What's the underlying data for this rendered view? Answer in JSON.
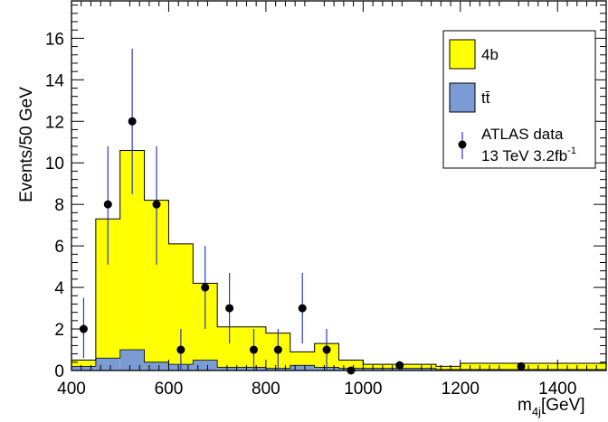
{
  "chart_data": {
    "type": "histogram",
    "xlabel": "m",
    "xlabel_sub": "4j",
    "xlabel_unit": "[GeV]",
    "ylabel": "Events/50 GeV",
    "xlim": [
      400,
      1500
    ],
    "ylim": [
      0,
      17.8
    ],
    "x_ticks": [
      400,
      600,
      800,
      1000,
      1200,
      1400
    ],
    "y_ticks": [
      0,
      2,
      4,
      6,
      8,
      10,
      12,
      14,
      16
    ],
    "grid": false,
    "legend_position": "top-right",
    "legend": {
      "series_4b": "4b",
      "series_ttbar": "tt̄",
      "data_line1": "ATLAS data",
      "data_line2": "13 TeV 3.2fb",
      "data_line2_sup": "-1"
    },
    "stack_colors": {
      "series_4b": "#ffff00",
      "series_ttbar": "#7b9bd5"
    },
    "bins": [
      {
        "x0": 400,
        "x1": 450,
        "ttbar": 0.2,
        "total": 0.5
      },
      {
        "x0": 450,
        "x1": 500,
        "ttbar": 0.6,
        "total": 7.3
      },
      {
        "x0": 500,
        "x1": 550,
        "ttbar": 1.0,
        "total": 10.6
      },
      {
        "x0": 550,
        "x1": 600,
        "ttbar": 0.4,
        "total": 8.2
      },
      {
        "x0": 600,
        "x1": 650,
        "ttbar": 0.3,
        "total": 6.1
      },
      {
        "x0": 650,
        "x1": 700,
        "ttbar": 0.5,
        "total": 4.2
      },
      {
        "x0": 700,
        "x1": 750,
        "ttbar": 0.15,
        "total": 2.1
      },
      {
        "x0": 750,
        "x1": 800,
        "ttbar": 0.15,
        "total": 2.1
      },
      {
        "x0": 800,
        "x1": 850,
        "ttbar": 0.1,
        "total": 1.8
      },
      {
        "x0": 850,
        "x1": 900,
        "ttbar": 0.25,
        "total": 0.9
      },
      {
        "x0": 900,
        "x1": 950,
        "ttbar": 0.15,
        "total": 1.3
      },
      {
        "x0": 950,
        "x1": 1000,
        "ttbar": 0.1,
        "total": 0.5
      },
      {
        "x0": 1000,
        "x1": 1050,
        "ttbar": 0.1,
        "total": 0.3
      },
      {
        "x0": 1050,
        "x1": 1100,
        "ttbar": 0.1,
        "total": 0.3
      },
      {
        "x0": 1100,
        "x1": 1150,
        "ttbar": 0.1,
        "total": 0.3
      },
      {
        "x0": 1150,
        "x1": 1200,
        "ttbar": 0.05,
        "total": 0.2
      },
      {
        "x0": 1200,
        "x1": 1500,
        "ttbar": 0.05,
        "total": 0.35
      }
    ],
    "data_points": [
      {
        "x": 425,
        "y": 2,
        "err_low": 1.4,
        "err_high": 1.5
      },
      {
        "x": 475,
        "y": 8,
        "err_low": 2.9,
        "err_high": 2.8
      },
      {
        "x": 525,
        "y": 12,
        "err_low": 3.5,
        "err_high": 3.5
      },
      {
        "x": 575,
        "y": 8,
        "err_low": 2.9,
        "err_high": 2.8
      },
      {
        "x": 625,
        "y": 1,
        "err_low": 1.0,
        "err_high": 1.0
      },
      {
        "x": 675,
        "y": 4,
        "err_low": 2.0,
        "err_high": 2.0
      },
      {
        "x": 725,
        "y": 3,
        "err_low": 1.7,
        "err_high": 1.7
      },
      {
        "x": 775,
        "y": 1,
        "err_low": 1.0,
        "err_high": 1.0
      },
      {
        "x": 825,
        "y": 1,
        "err_low": 1.0,
        "err_high": 1.0
      },
      {
        "x": 875,
        "y": 3,
        "err_low": 1.7,
        "err_high": 1.7
      },
      {
        "x": 925,
        "y": 1,
        "err_low": 1.0,
        "err_high": 1.0
      },
      {
        "x": 975,
        "y": 0,
        "err_low": 0,
        "err_high": 0
      },
      {
        "x": 1075,
        "y": 0.25,
        "err_low": 0.2,
        "err_high": 0.2
      },
      {
        "x": 1325,
        "y": 0.2,
        "err_low": 0.1,
        "err_high": 0.1
      }
    ]
  }
}
